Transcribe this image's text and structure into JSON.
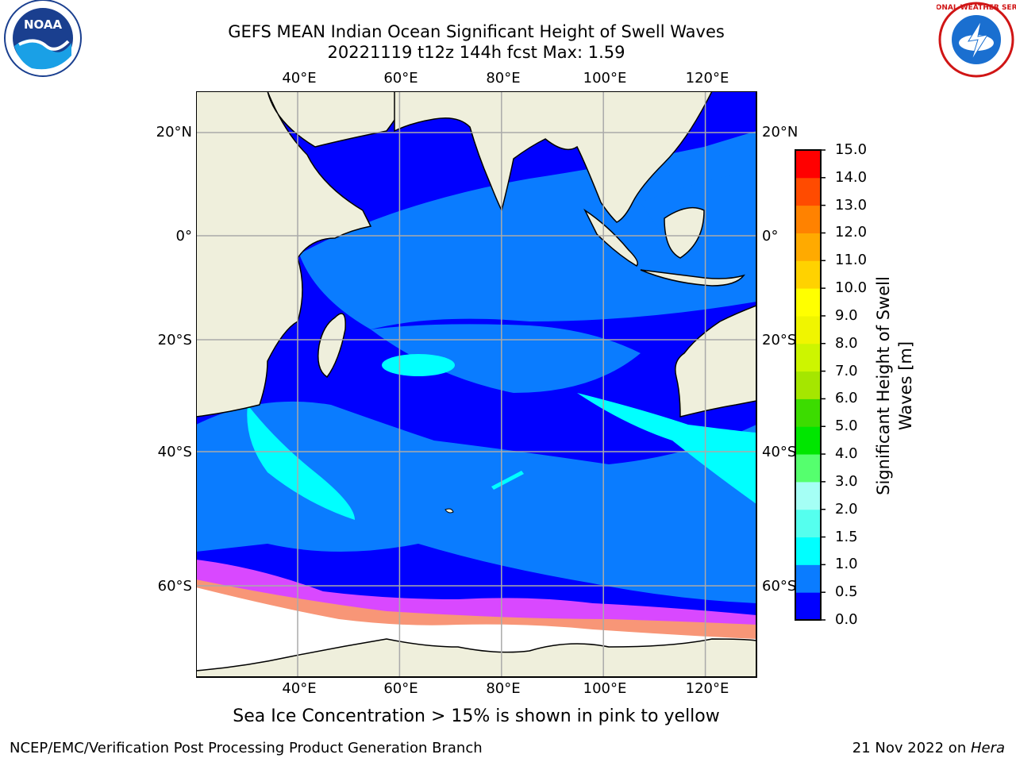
{
  "title": {
    "line1": "GEFS MEAN Indian Ocean Significant Height of Swell Waves",
    "line2": "20221119 t12z 144h fcst   Max: 1.59"
  },
  "logos": {
    "left": {
      "text": "NOAA",
      "icon": "noaa-logo-icon"
    },
    "right": {
      "text": "NATIONAL WEATHER SERVICE",
      "icon": "nws-logo-icon"
    }
  },
  "map": {
    "lon_ticks": [
      "40°E",
      "60°E",
      "80°E",
      "100°E",
      "120°E"
    ],
    "lon_values": [
      40,
      60,
      80,
      100,
      120
    ],
    "lat_ticks": [
      "20°N",
      "0°",
      "20°S",
      "40°S",
      "60°S"
    ],
    "lat_values": [
      20,
      0,
      -20,
      -40,
      -60
    ],
    "lon_range": [
      20,
      130
    ],
    "grid": true,
    "max_value": 1.59
  },
  "colorbar": {
    "label_line1": "Significant Height of Swell",
    "label_line2": "Waves [m]",
    "ticks": [
      "0.0",
      "0.5",
      "1.0",
      "1.5",
      "2.0",
      "3.0",
      "4.0",
      "5.0",
      "6.0",
      "7.0",
      "8.0",
      "9.0",
      "10.0",
      "11.0",
      "12.0",
      "13.0",
      "14.0",
      "15.0"
    ],
    "colors": [
      "#0000ff",
      "#0a7cff",
      "#00ffff",
      "#55ffee",
      "#a5fff5",
      "#55ff6e",
      "#00e600",
      "#3cdc00",
      "#a5e600",
      "#cdf500",
      "#f0f500",
      "#ffff00",
      "#ffd200",
      "#ffaa00",
      "#ff8200",
      "#ff4b00",
      "#ff0000"
    ]
  },
  "caption": "Sea Ice Concentration > 15% is shown in pink to yellow",
  "footer": {
    "left": "NCEP/EMC/Verification Post Processing Product Generation Branch",
    "right_date": "21 Nov 2022 on ",
    "right_host": "Hera"
  }
}
